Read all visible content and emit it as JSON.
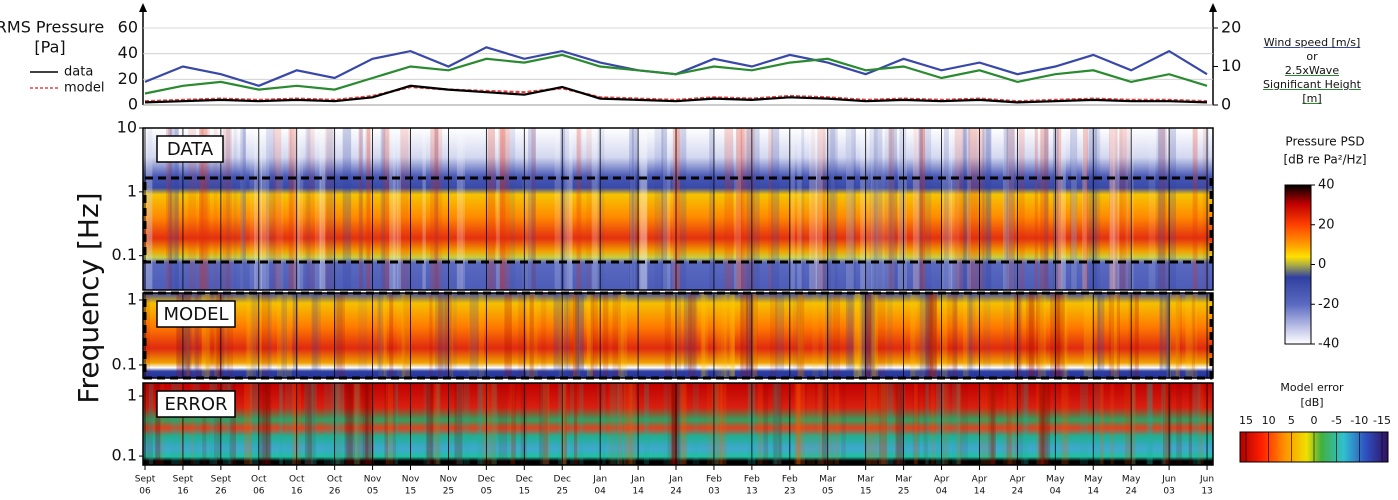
{
  "chart_data": [
    {
      "type": "line",
      "ylabel": "RMS Pressure",
      "ylabel_unit": "[Pa]",
      "ylim": [
        0,
        60
      ],
      "yticks": [
        0,
        20,
        40,
        60
      ],
      "y2lim": [
        0,
        20
      ],
      "y2ticks": [
        0,
        10,
        20
      ],
      "legend_joiner": "or",
      "categories": [
        [
          "Sept",
          "06"
        ],
        [
          "Sept",
          "16"
        ],
        [
          "Sept",
          "26"
        ],
        [
          "Oct",
          "06"
        ],
        [
          "Oct",
          "16"
        ],
        [
          "Oct",
          "26"
        ],
        [
          "Nov",
          "05"
        ],
        [
          "Nov",
          "15"
        ],
        [
          "Nov",
          "25"
        ],
        [
          "Dec",
          "05"
        ],
        [
          "Dec",
          "15"
        ],
        [
          "Dec",
          "25"
        ],
        [
          "Jan",
          "04"
        ],
        [
          "Jan",
          "14"
        ],
        [
          "Jan",
          "24"
        ],
        [
          "Feb",
          "03"
        ],
        [
          "Feb",
          "13"
        ],
        [
          "Feb",
          "23"
        ],
        [
          "Mar",
          "05"
        ],
        [
          "Mar",
          "15"
        ],
        [
          "Mar",
          "25"
        ],
        [
          "Apr",
          "04"
        ],
        [
          "Apr",
          "14"
        ],
        [
          "Apr",
          "24"
        ],
        [
          "May",
          "04"
        ],
        [
          "May",
          "14"
        ],
        [
          "May",
          "24"
        ],
        [
          "Jun",
          "03"
        ],
        [
          "Jun",
          "13"
        ]
      ],
      "series": [
        {
          "name": "Wind speed [m/s]",
          "color": "#3848a8",
          "axis": "y2",
          "values": [
            6,
            10,
            8,
            5,
            9,
            7,
            12,
            14,
            10,
            15,
            12,
            14,
            11,
            9,
            8,
            12,
            10,
            13,
            11,
            8,
            12,
            9,
            11,
            8,
            10,
            13,
            9,
            14,
            8
          ]
        },
        {
          "name": "2.5xWave Significant Height [m]",
          "color": "#2a8a30",
          "axis": "y2",
          "values": [
            3,
            5,
            6,
            4,
            5,
            4,
            7,
            10,
            9,
            12,
            11,
            13,
            10,
            9,
            8,
            10,
            9,
            11,
            12,
            9,
            10,
            7,
            9,
            6,
            8,
            9,
            6,
            8,
            5
          ]
        },
        {
          "name": "model",
          "color": "#e84040",
          "dashed": true,
          "values": [
            3,
            4,
            5,
            4,
            5,
            4,
            7,
            14,
            12,
            11,
            10,
            13,
            6,
            5,
            4,
            6,
            5,
            7,
            6,
            4,
            5,
            4,
            5,
            3,
            4,
            5,
            4,
            4,
            3
          ]
        },
        {
          "name": "data",
          "color": "#000000",
          "values": [
            2,
            3,
            4,
            3,
            4,
            3,
            6,
            15,
            12,
            10,
            8,
            14,
            5,
            4,
            3,
            5,
            4,
            6,
            5,
            3,
            4,
            3,
            4,
            2,
            3,
            4,
            3,
            3,
            2
          ]
        }
      ]
    },
    {
      "type": "heatmap",
      "label": "DATA",
      "ylabel": "Frequency [Hz]",
      "log_y": true,
      "ylim": [
        0.029,
        10
      ],
      "yticks": [
        10,
        1,
        0.1
      ],
      "colorbar": {
        "title": "Pressure PSD",
        "unit": "[dB re Pa²/Hz]",
        "clim": [
          -40,
          40
        ],
        "ticks": [
          40,
          20,
          0,
          -20,
          -40
        ]
      }
    },
    {
      "type": "heatmap",
      "label": "MODEL",
      "log_y": true,
      "ylim": [
        0.063,
        1.28
      ],
      "yticks": [
        1,
        0.1
      ]
    },
    {
      "type": "heatmap",
      "label": "ERROR",
      "log_y": true,
      "ylim": [
        0.071,
        1.65
      ],
      "yticks": [
        1,
        0.1
      ],
      "colorbar": {
        "title": "Model error",
        "unit": "[dB]",
        "clim": [
          15,
          -15
        ],
        "ticks": [
          15,
          10,
          5,
          0,
          -5,
          -10,
          -15
        ]
      }
    }
  ]
}
